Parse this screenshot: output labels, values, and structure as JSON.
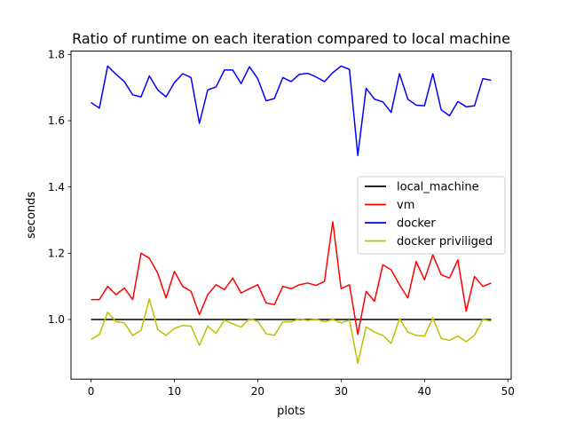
{
  "chart_data": {
    "type": "line",
    "title": "Ratio of runtime on each iteration compared to local machine",
    "xlabel": "plots",
    "ylabel": "seconds",
    "xlim": [
      -2.4,
      50.4
    ],
    "ylim": [
      0.82,
      1.81
    ],
    "xticks": [
      0,
      10,
      20,
      30,
      40,
      50
    ],
    "xtick_labels": [
      "0",
      "10",
      "20",
      "30",
      "40",
      "50"
    ],
    "yticks": [
      1.0,
      1.2,
      1.4,
      1.6,
      1.8
    ],
    "ytick_labels": [
      "1.0",
      "1.2",
      "1.4",
      "1.6",
      "1.8"
    ],
    "grid": false,
    "legend_position": "center-right",
    "x": [
      0,
      1,
      2,
      3,
      4,
      5,
      6,
      7,
      8,
      9,
      10,
      11,
      12,
      13,
      14,
      15,
      16,
      17,
      18,
      19,
      20,
      21,
      22,
      23,
      24,
      25,
      26,
      27,
      28,
      29,
      30,
      31,
      32,
      33,
      34,
      35,
      36,
      37,
      38,
      39,
      40,
      41,
      42,
      43,
      44,
      45,
      46,
      47,
      48
    ],
    "series": [
      {
        "name": "local_machine",
        "color": "#000000",
        "values": [
          1,
          1,
          1,
          1,
          1,
          1,
          1,
          1,
          1,
          1,
          1,
          1,
          1,
          1,
          1,
          1,
          1,
          1,
          1,
          1,
          1,
          1,
          1,
          1,
          1,
          1,
          1,
          1,
          1,
          1,
          1,
          1,
          1,
          1,
          1,
          1,
          1,
          1,
          1,
          1,
          1,
          1,
          1,
          1,
          1,
          1,
          1,
          1,
          1
        ]
      },
      {
        "name": "vm",
        "color": "#ff0000",
        "values": [
          1.06,
          1.06,
          1.1,
          1.075,
          1.095,
          1.06,
          1.2,
          1.185,
          1.14,
          1.065,
          1.145,
          1.1,
          1.085,
          1.015,
          1.075,
          1.105,
          1.09,
          1.125,
          1.08,
          1.093,
          1.105,
          1.05,
          1.045,
          1.1,
          1.093,
          1.105,
          1.11,
          1.103,
          1.115,
          1.295,
          1.093,
          1.105,
          0.955,
          1.085,
          1.055,
          1.165,
          1.15,
          1.105,
          1.065,
          1.175,
          1.12,
          1.195,
          1.135,
          1.125,
          1.18,
          1.025,
          1.13,
          1.1,
          1.11
        ]
      },
      {
        "name": "docker",
        "color": "#0000ff",
        "values": [
          1.655,
          1.638,
          1.765,
          1.74,
          1.718,
          1.678,
          1.672,
          1.735,
          1.693,
          1.672,
          1.715,
          1.742,
          1.73,
          1.592,
          1.693,
          1.702,
          1.753,
          1.753,
          1.712,
          1.763,
          1.727,
          1.66,
          1.667,
          1.73,
          1.718,
          1.74,
          1.743,
          1.732,
          1.718,
          1.745,
          1.765,
          1.755,
          1.495,
          1.698,
          1.665,
          1.657,
          1.625,
          1.742,
          1.665,
          1.647,
          1.645,
          1.742,
          1.633,
          1.615,
          1.658,
          1.642,
          1.645,
          1.727,
          1.722
        ]
      },
      {
        "name": "docker priviliged",
        "color": "#bfbf00",
        "values": [
          0.94,
          0.955,
          1.022,
          0.993,
          0.99,
          0.952,
          0.967,
          1.062,
          0.97,
          0.952,
          0.973,
          0.982,
          0.98,
          0.922,
          0.98,
          0.958,
          0.998,
          0.987,
          0.977,
          1.002,
          0.995,
          0.957,
          0.952,
          0.993,
          0.993,
          1.002,
          0.997,
          1.001,
          0.993,
          1.0,
          0.99,
          0.998,
          0.868,
          0.978,
          0.962,
          0.952,
          0.928,
          1.003,
          0.962,
          0.952,
          0.95,
          1.005,
          0.943,
          0.937,
          0.95,
          0.933,
          0.953,
          1.0,
          0.995
        ]
      }
    ]
  }
}
